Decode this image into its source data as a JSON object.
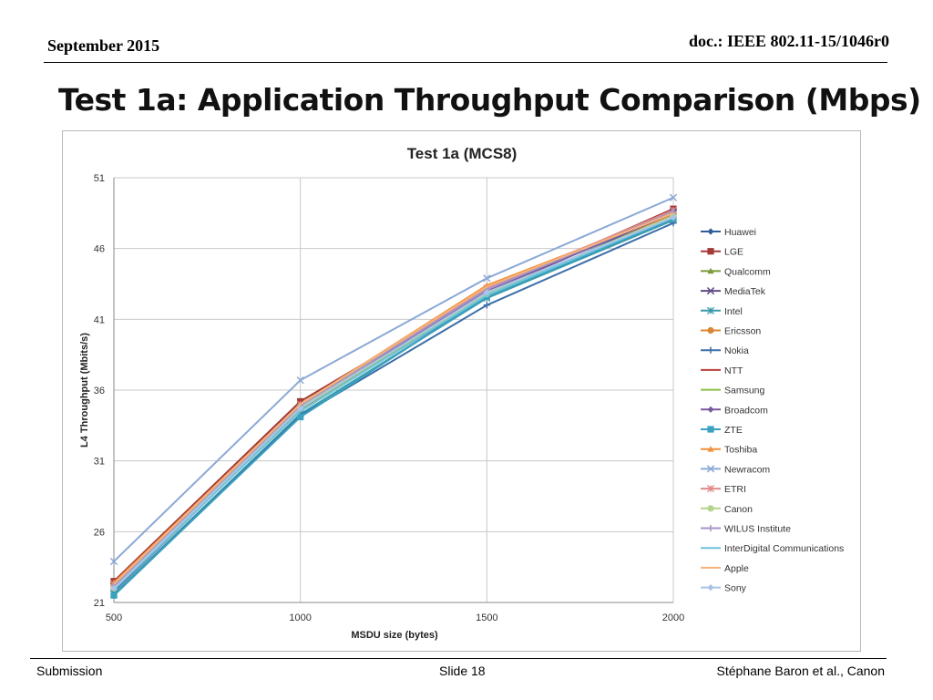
{
  "header": {
    "date": "September 2015",
    "doc": "doc.: IEEE 802.11-15/1046r0"
  },
  "slide": {
    "title": "Test 1a: Application Throughput Comparison (Mbps)"
  },
  "footer": {
    "left": "Submission",
    "center": "Slide 18",
    "right": "Stéphane Baron et al., Canon"
  },
  "chart_data": {
    "type": "line",
    "title": "Test 1a (MCS8)",
    "xlabel": "MSDU size (bytes)",
    "ylabel": "L4 Throughput (Mbits/s)",
    "categories": [
      "500",
      "1000",
      "1500",
      "2000"
    ],
    "y_ticks": [
      "21",
      "26",
      "31",
      "36",
      "41",
      "46",
      "51"
    ],
    "ylim": [
      21,
      51
    ],
    "grid": true,
    "legend_position": "right",
    "series": [
      {
        "name": "Huawei",
        "color": "#2e5d9a",
        "marker": "diamond",
        "values": [
          21.8,
          34.6,
          42.6,
          48.5
        ]
      },
      {
        "name": "LGE",
        "color": "#a33a36",
        "marker": "square",
        "values": [
          22.5,
          35.2,
          43.0,
          48.8
        ]
      },
      {
        "name": "Qualcomm",
        "color": "#7c9a3a",
        "marker": "triangle",
        "values": [
          22.0,
          34.6,
          42.8,
          48.3
        ]
      },
      {
        "name": "MediaTek",
        "color": "#5e4a84",
        "marker": "x",
        "values": [
          22.1,
          34.8,
          42.9,
          48.6
        ]
      },
      {
        "name": "Intel",
        "color": "#3a9aaa",
        "marker": "star",
        "values": [
          21.6,
          34.3,
          42.5,
          48.0
        ]
      },
      {
        "name": "Ericsson",
        "color": "#d98734",
        "marker": "circle",
        "values": [
          22.2,
          34.9,
          43.2,
          48.4
        ]
      },
      {
        "name": "Nokia",
        "color": "#3d6fa8",
        "marker": "plus",
        "values": [
          21.5,
          34.2,
          42.0,
          47.8
        ]
      },
      {
        "name": "NTT",
        "color": "#b8413b",
        "marker": "none",
        "values": [
          22.3,
          35.0,
          43.1,
          48.6
        ]
      },
      {
        "name": "Samsung",
        "color": "#8cc046",
        "marker": "none",
        "values": [
          22.0,
          34.7,
          42.7,
          48.2
        ]
      },
      {
        "name": "Broadcom",
        "color": "#7a5a9e",
        "marker": "diamond",
        "values": [
          22.1,
          34.9,
          43.0,
          48.5
        ]
      },
      {
        "name": "ZTE",
        "color": "#3aa2c0",
        "marker": "square",
        "values": [
          21.5,
          34.1,
          42.6,
          48.1
        ]
      },
      {
        "name": "Toshiba",
        "color": "#f0913b",
        "marker": "triangle",
        "values": [
          22.4,
          35.0,
          43.4,
          48.5
        ]
      },
      {
        "name": "Newracom",
        "color": "#8aa8d6",
        "marker": "x",
        "values": [
          23.9,
          36.7,
          43.9,
          49.6
        ]
      },
      {
        "name": "ETRI",
        "color": "#e08a88",
        "marker": "star",
        "values": [
          22.3,
          35.0,
          43.2,
          48.7
        ]
      },
      {
        "name": "Canon",
        "color": "#b5d48c",
        "marker": "circle",
        "values": [
          22.0,
          34.8,
          42.8,
          48.3
        ]
      },
      {
        "name": "WILUS Institute",
        "color": "#a695c6",
        "marker": "plus",
        "values": [
          22.2,
          34.9,
          43.1,
          48.6
        ]
      },
      {
        "name": "InterDigital Communications",
        "color": "#6ec4dc",
        "marker": "none",
        "values": [
          21.9,
          34.5,
          42.7,
          48.2
        ]
      },
      {
        "name": "Apple",
        "color": "#f6b27a",
        "marker": "none",
        "values": [
          22.3,
          35.0,
          43.3,
          48.5
        ]
      },
      {
        "name": "Sony",
        "color": "#a9c4e6",
        "marker": "diamond",
        "values": [
          22.0,
          34.7,
          42.9,
          48.2
        ]
      }
    ]
  }
}
